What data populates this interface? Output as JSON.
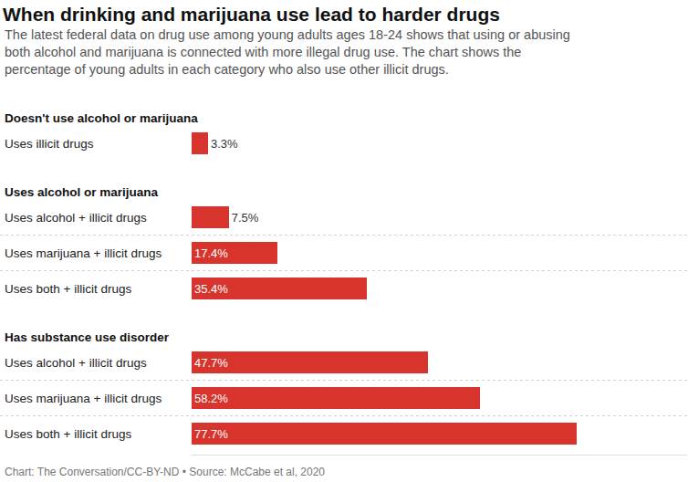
{
  "chart_data": {
    "type": "bar",
    "orientation": "horizontal",
    "title": "When drinking and marijuana use lead to harder drugs",
    "subtitle": "The latest federal data on drug use among young adults ages 18-24 shows that using or abusing both alcohol and marijuana is connected with more illegal drug use. The chart shows the percentage of young adults in each category who also use other illicit drugs.",
    "source": "Chart: The Conversation/CC-BY-ND • Source: McCabe et al, 2020",
    "color": "#d6342c",
    "data_labels": true,
    "tick_labels": false,
    "grid": false,
    "xlim": [
      0,
      100
    ],
    "groups": [
      {
        "title": "Doesn't use alcohol or marijuana",
        "categories": [
          "Uses illicit drugs"
        ],
        "values": [
          3.3
        ],
        "value_labels": [
          "3.3%"
        ]
      },
      {
        "title": "Uses alcohol or marijuana",
        "categories": [
          "Uses alcohol + illicit drugs",
          "Uses marijuana + illicit drugs",
          "Uses both + illicit drugs"
        ],
        "values": [
          7.5,
          17.4,
          35.4
        ],
        "value_labels": [
          "7.5%",
          "17.4%",
          "35.4%"
        ]
      },
      {
        "title": "Has substance use disorder",
        "categories": [
          "Uses alcohol + illicit drugs",
          "Uses marijuana + illicit drugs",
          "Uses both + illicit drugs"
        ],
        "values": [
          47.7,
          58.2,
          77.7
        ],
        "value_labels": [
          "47.7%",
          "58.2%",
          "77.7%"
        ]
      }
    ]
  }
}
